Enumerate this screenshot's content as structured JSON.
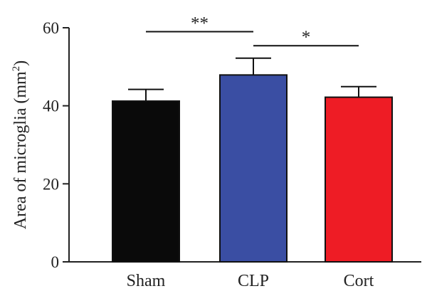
{
  "chart_data": {
    "type": "bar",
    "title": "",
    "xlabel": "",
    "ylabel": "Area of microglia (mm",
    "ylabel_sup": "2",
    "ylabel_close": ")",
    "ylim": [
      0,
      60
    ],
    "yticks": [
      0,
      20,
      40,
      60
    ],
    "categories": [
      "Sham",
      "CLP",
      "Cort"
    ],
    "values": [
      41.2,
      47.9,
      42.2
    ],
    "errors": [
      3.0,
      4.3,
      2.7
    ],
    "colors": [
      "#0a0a0a",
      "#3a4ea3",
      "#ee1c25"
    ],
    "significance": [
      {
        "from": "Sham",
        "to": "CLP",
        "label": "**",
        "y": 59
      },
      {
        "from": "CLP",
        "to": "Cort",
        "label": "*",
        "y": 55.4
      }
    ],
    "grid": false,
    "legend": "none"
  }
}
